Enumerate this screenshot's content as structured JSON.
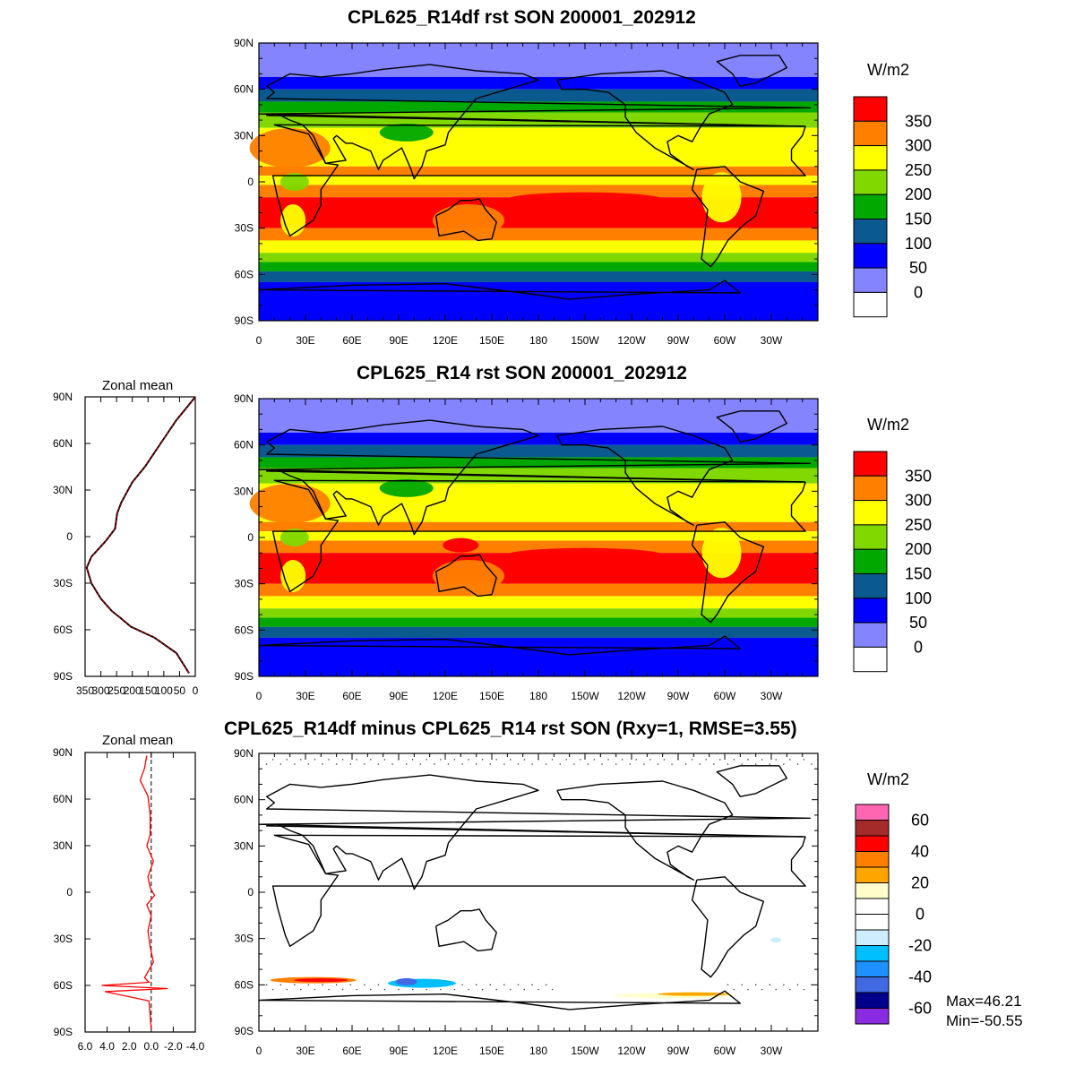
{
  "panels": [
    {
      "title": "CPL625_R14df rst SON 200001_202912",
      "units": "W/m2",
      "lat_ticks": [
        "90N",
        "60N",
        "30N",
        "0",
        "30S",
        "60S",
        "90S"
      ],
      "lon_ticks": [
        "0",
        "30E",
        "60E",
        "90E",
        "120E",
        "150E",
        "180",
        "150W",
        "120W",
        "90W",
        "60W",
        "30W"
      ],
      "colorbar_labels": [
        "350",
        "300",
        "250",
        "200",
        "150",
        "100",
        "50",
        "0"
      ],
      "colorbar_colors": [
        "#ff0000",
        "#ff7f00",
        "#ffff00",
        "#80d800",
        "#00a800",
        "#0a5a90",
        "#0000ff",
        "#8484ff",
        "#ffffff"
      ]
    },
    {
      "title": "CPL625_R14 rst SON 200001_202912",
      "units": "W/m2",
      "lat_ticks": [
        "90N",
        "60N",
        "30N",
        "0",
        "30S",
        "60S",
        "90S"
      ],
      "lon_ticks": [
        "0",
        "30E",
        "60E",
        "90E",
        "120E",
        "150E",
        "180",
        "150W",
        "120W",
        "90W",
        "60W",
        "30W"
      ],
      "colorbar_labels": [
        "350",
        "300",
        "250",
        "200",
        "150",
        "100",
        "50",
        "0"
      ],
      "colorbar_colors": [
        "#ff0000",
        "#ff7f00",
        "#ffff00",
        "#80d800",
        "#00a800",
        "#0a5a90",
        "#0000ff",
        "#8484ff",
        "#ffffff"
      ],
      "zonal_mean": {
        "title": "Zonal mean",
        "x_ticks": [
          "350",
          "300",
          "250",
          "200",
          "150",
          "100",
          "50",
          "0"
        ],
        "lat_ticks": [
          "90N",
          "60N",
          "30N",
          "0",
          "30S",
          "60S",
          "90S"
        ]
      }
    },
    {
      "title": "CPL625_R14df minus CPL625_R14 rst SON (Rxy=1, RMSE=3.55)",
      "units": "W/m2",
      "lat_ticks": [
        "90N",
        "60N",
        "30N",
        "0",
        "30S",
        "60S",
        "90S"
      ],
      "lon_ticks": [
        "0",
        "30E",
        "60E",
        "90E",
        "120E",
        "150E",
        "180",
        "150W",
        "120W",
        "90W",
        "60W",
        "30W"
      ],
      "colorbar_labels": [
        "60",
        "40",
        "20",
        "0",
        "-20",
        "-40",
        "-60"
      ],
      "colorbar_colors": [
        "#ff66b2",
        "#a52a2a",
        "#ff0000",
        "#ff7f00",
        "#ffa500",
        "#ffffcc",
        "#ffffff",
        "#ffffff",
        "#cceeff",
        "#00bfff",
        "#1e90ff",
        "#4169e1",
        "#00008b",
        "#8a2be2"
      ],
      "stats": {
        "max": "Max=46.21",
        "min": "Min=-50.55"
      },
      "zonal_mean": {
        "title": "Zonal mean",
        "x_ticks": [
          "6.0",
          "4.0",
          "2.0",
          "0.0",
          "-2.0",
          "-4.0"
        ],
        "lat_ticks": [
          "90N",
          "60N",
          "30N",
          "0",
          "30S",
          "60S",
          "90S"
        ]
      }
    }
  ],
  "chart_data": [
    {
      "type": "line",
      "title": "Zonal mean",
      "xlim": [
        350,
        0
      ],
      "ylim": [
        -90,
        90
      ],
      "series": [
        {
          "x": [
            0,
            20,
            60,
            110,
            160,
            200,
            235,
            248,
            255,
            285,
            330,
            345,
            330,
            300,
            265,
            240,
            205,
            130,
            60,
            20
          ],
          "y": [
            90,
            85,
            75,
            60,
            45,
            35,
            22,
            15,
            5,
            -3,
            -13,
            -20,
            -30,
            -40,
            -48,
            -52,
            -58,
            -65,
            -75,
            -88
          ]
        }
      ]
    },
    {
      "type": "line",
      "title": "Zonal mean",
      "xlim": [
        6.0,
        -4.0
      ],
      "ylim": [
        -90,
        90
      ],
      "series": [
        {
          "x": [
            0.4,
            0.6,
            1.0,
            0.3,
            0.1,
            0.1,
            0.4,
            -0.2,
            0.3,
            0.1,
            -0.3,
            0.4,
            0.0,
            0.3,
            0.1,
            -0.2,
            0.6,
            0.2,
            4.5,
            -1.5,
            4.2,
            0.2,
            0.0
          ],
          "y": [
            88,
            80,
            72,
            62,
            50,
            37,
            30,
            20,
            10,
            3,
            -2,
            -8,
            -15,
            -25,
            -35,
            -45,
            -55,
            -58,
            -60,
            -62,
            -64,
            -70,
            -88
          ]
        }
      ]
    }
  ]
}
